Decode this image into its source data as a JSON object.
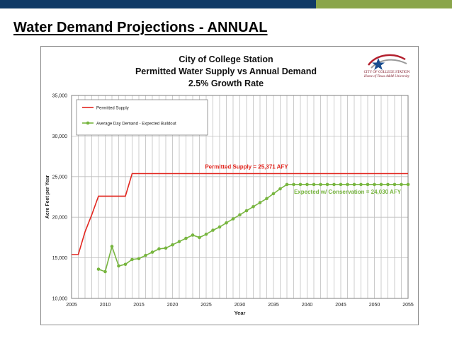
{
  "slide": {
    "title": "Water Demand Projections - ANNUAL"
  },
  "colors": {
    "header_blue": "#0f3a66",
    "header_green": "#8aa54a",
    "supply": "#e2261f",
    "demand": "#77b53f",
    "grid": "#bfbfbf"
  },
  "logo": {
    "line1": "CITY OF COLLEGE STATION",
    "line2": "Home of Texas A&M University"
  },
  "chart_data": {
    "type": "line",
    "title_lines": [
      "City of College Station",
      "Permitted Water Supply vs Annual Demand",
      "2.5% Growth Rate"
    ],
    "xlabel": "Year",
    "ylabel": "Acre Feet per Year",
    "xlim": [
      2005,
      2055
    ],
    "ylim": [
      10000,
      35000
    ],
    "x_ticks": [
      2005,
      2010,
      2015,
      2020,
      2025,
      2030,
      2035,
      2040,
      2045,
      2050,
      2055
    ],
    "y_ticks": [
      10000,
      15000,
      20000,
      25000,
      30000,
      35000
    ],
    "y_tick_labels": [
      "10,000",
      "15,000",
      "20,000",
      "25,000",
      "30,000",
      "35,000"
    ],
    "grid": "vertical gridlines every year, horizontal at each tick",
    "legend_position": "top-left",
    "series": [
      {
        "name": "Permitted Supply",
        "color": "#e2261f",
        "marker": "none",
        "x": [
          2005,
          2006,
          2007,
          2008,
          2009,
          2010,
          2011,
          2012,
          2013,
          2014,
          2055
        ],
        "y": [
          15400,
          15400,
          18200,
          20300,
          22600,
          22600,
          22600,
          22600,
          22600,
          25371,
          25371
        ]
      },
      {
        "name": "Average Day Demand - Expected Buildout",
        "color": "#77b53f",
        "marker": "circle",
        "x": [
          2009,
          2010,
          2011,
          2012,
          2013,
          2014,
          2015,
          2016,
          2017,
          2018,
          2019,
          2020,
          2021,
          2022,
          2023,
          2024,
          2025,
          2026,
          2027,
          2028,
          2029,
          2030,
          2031,
          2032,
          2033,
          2034,
          2035,
          2036,
          2037,
          2038,
          2039,
          2040,
          2041,
          2042,
          2043,
          2044,
          2045,
          2046,
          2047,
          2048,
          2049,
          2050,
          2051,
          2052,
          2053,
          2054,
          2055
        ],
        "y": [
          13600,
          13300,
          16400,
          14000,
          14200,
          14800,
          14900,
          15300,
          15700,
          16100,
          16200,
          16600,
          17000,
          17400,
          17800,
          17500,
          17900,
          18400,
          18800,
          19300,
          19800,
          20300,
          20800,
          21300,
          21800,
          22300,
          22900,
          23500,
          24030,
          24030,
          24030,
          24030,
          24030,
          24030,
          24030,
          24030,
          24030,
          24030,
          24030,
          24030,
          24030,
          24030,
          24030,
          24030,
          24030,
          24030,
          24030
        ]
      }
    ],
    "annotations": [
      {
        "text": "Permitted Supply = 25,371 AFY",
        "x": 2031,
        "y": 26000,
        "color": "#e2261f"
      },
      {
        "text": "Expected w/ Conservation = 24,030 AFY",
        "x": 2046,
        "y": 22900,
        "color": "#77b53f"
      }
    ]
  }
}
